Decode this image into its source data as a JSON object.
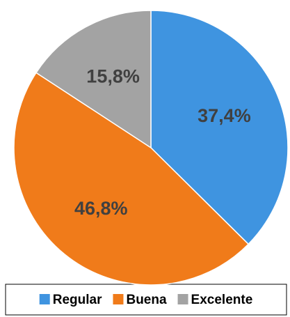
{
  "chart_data": {
    "type": "pie",
    "categories": [
      "Regular",
      "Buena",
      "Excelente"
    ],
    "values": [
      37.4,
      46.8,
      15.8
    ],
    "value_labels": [
      "37,4%",
      "46,8%",
      "15,8%"
    ],
    "colors": [
      "#3f94e0",
      "#f07b1a",
      "#a3a3a3"
    ],
    "legend": "bottom"
  }
}
